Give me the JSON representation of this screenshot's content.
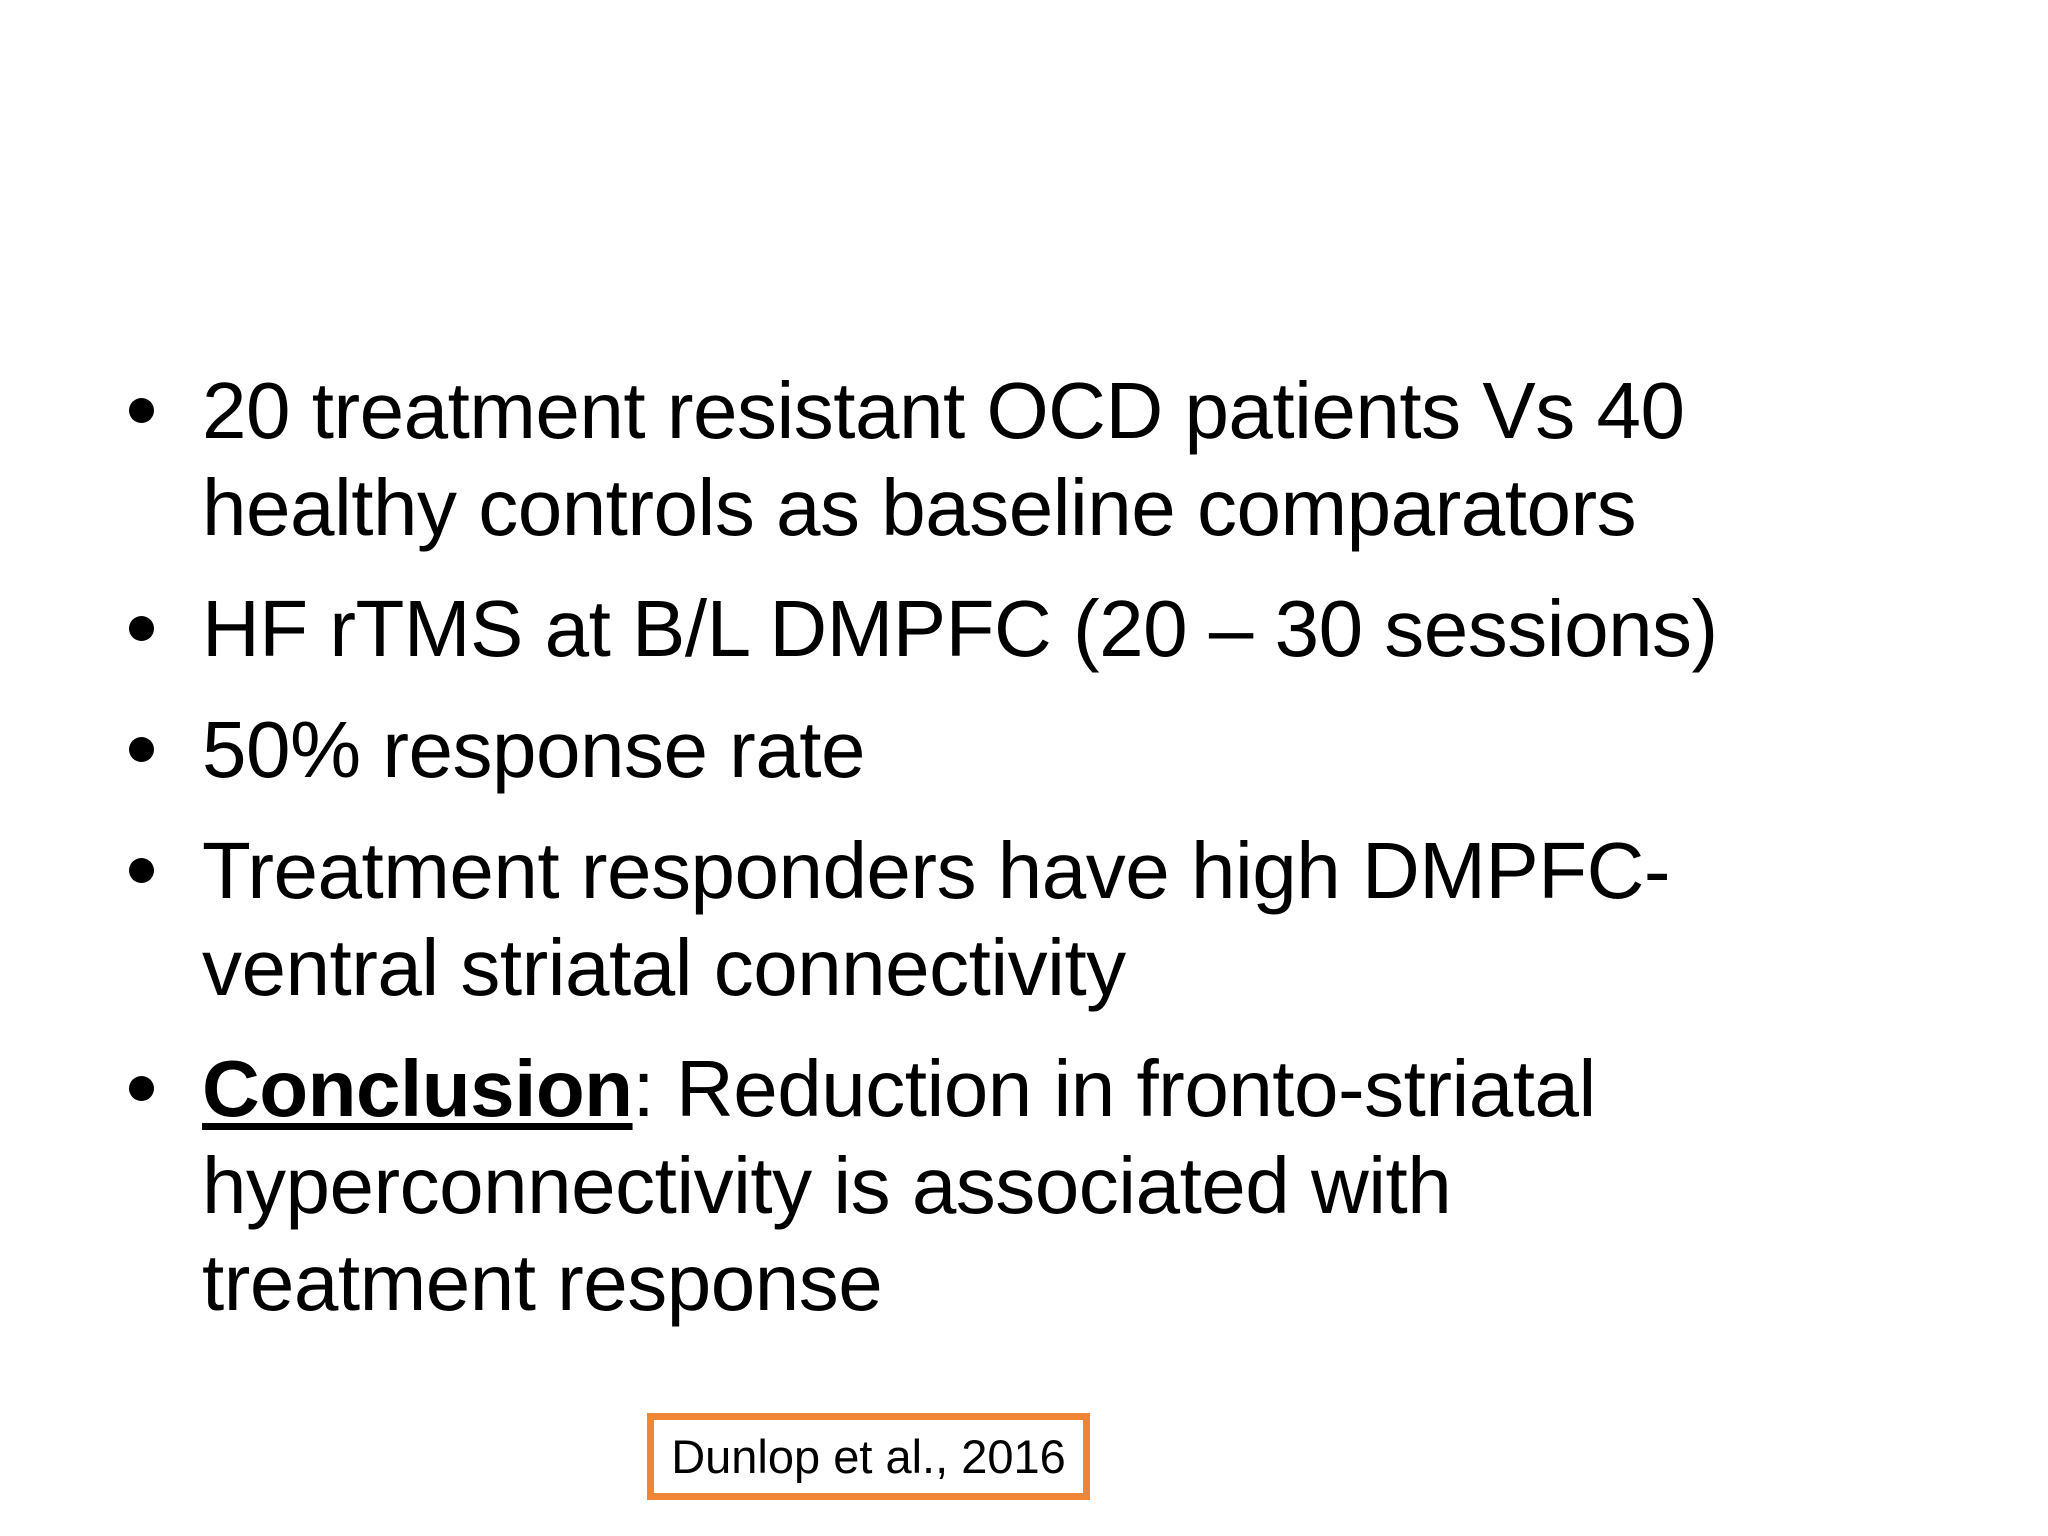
{
  "slide": {
    "colors": {
      "background": "#FFFFFF",
      "text": "#000000",
      "citation_border": "#EE8636"
    },
    "bullets": [
      {
        "lines": [
          "20 treatment resistant OCD patients Vs 40",
          "healthy controls as baseline comparators"
        ]
      },
      {
        "lines": [
          "HF rTMS at B/L DMPFC (20 – 30 sessions)"
        ]
      },
      {
        "lines": [
          "50% response rate"
        ]
      },
      {
        "lines": [
          "Treatment responders have high DMPFC-",
          "ventral striatal connectivity"
        ]
      },
      {
        "emphasis": "Conclusion",
        "after_emphasis": ": Reduction in fronto-striatal",
        "lines": [
          "hyperconnectivity is associated with",
          "treatment response"
        ]
      }
    ],
    "citation": {
      "label": "Dunlop et al., 2016"
    }
  }
}
